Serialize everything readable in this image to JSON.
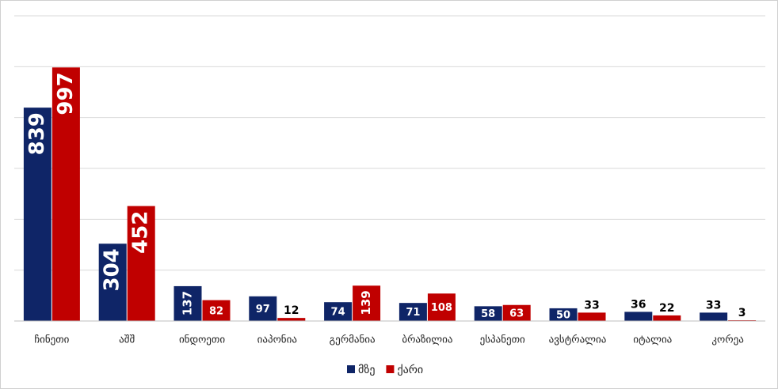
{
  "chart_data": {
    "type": "bar",
    "categories": [
      "ჩინეთი",
      "აშშ",
      "ინდოეთი",
      "იაპონია",
      "გერმანია",
      "ბრაზილია",
      "ესპანეთი",
      "ავსტრალია",
      "იტალია",
      "კორეა"
    ],
    "series": [
      {
        "name": "მზე",
        "color": "#0f2567",
        "values": [
          839,
          304,
          137,
          97,
          74,
          71,
          58,
          50,
          36,
          33
        ]
      },
      {
        "name": "ქარი",
        "color": "#c00000",
        "values": [
          997,
          452,
          82,
          12,
          139,
          108,
          63,
          33,
          22,
          3
        ]
      }
    ],
    "ylim": [
      0,
      1200
    ],
    "yticks": [
      0,
      200,
      400,
      600,
      800,
      1000,
      1200
    ],
    "grid": true,
    "legend": "bottom"
  }
}
